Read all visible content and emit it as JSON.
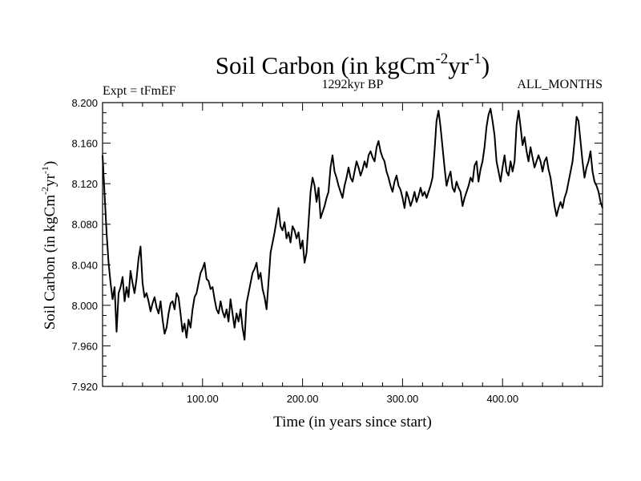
{
  "chart_data": {
    "type": "line",
    "title": {
      "main": "Soil Carbon (in kgCm",
      "sup1": "-2",
      "mid": "yr",
      "sup2": "-1",
      "end": ")"
    },
    "subtitle_left": "Expt = tFmEF",
    "subtitle_center": "1292kyr BP",
    "subtitle_right": "ALL_MONTHS",
    "xlabel": "Time (in years since start)",
    "ylabel": {
      "main": "Soil Carbon (in kgCm",
      "sup1": "-2",
      "mid": "yr",
      "sup2": "-1",
      "end": ")"
    },
    "xlim": [
      0,
      500
    ],
    "ylim": [
      7.92,
      8.2
    ],
    "x_ticks": [
      100,
      200,
      300,
      400
    ],
    "x_tick_labels": [
      "100.00",
      "200.00",
      "300.00",
      "400.00"
    ],
    "y_ticks": [
      7.92,
      7.96,
      8.0,
      8.04,
      8.08,
      8.12,
      8.16,
      8.2
    ],
    "y_tick_labels": [
      "7.920",
      "7.960",
      "8.000",
      "8.040",
      "8.080",
      "8.120",
      "8.160",
      "8.200"
    ],
    "series": [
      {
        "name": "Soil Carbon",
        "x": [
          0,
          2,
          4,
          6,
          8,
          10,
          12,
          14,
          16,
          18,
          20,
          22,
          24,
          26,
          28,
          30,
          32,
          34,
          36,
          38,
          40,
          42,
          44,
          46,
          48,
          50,
          52,
          54,
          56,
          58,
          60,
          62,
          64,
          66,
          68,
          70,
          72,
          74,
          76,
          78,
          80,
          82,
          84,
          86,
          88,
          90,
          92,
          94,
          96,
          98,
          100,
          102,
          104,
          106,
          108,
          110,
          112,
          114,
          116,
          118,
          120,
          122,
          124,
          126,
          128,
          130,
          132,
          134,
          136,
          138,
          140,
          142,
          144,
          146,
          148,
          150,
          152,
          154,
          156,
          158,
          160,
          162,
          164,
          166,
          168,
          170,
          172,
          174,
          176,
          178,
          180,
          182,
          184,
          186,
          188,
          190,
          192,
          194,
          196,
          198,
          200,
          202,
          204,
          206,
          208,
          210,
          212,
          214,
          216,
          218,
          220,
          222,
          224,
          226,
          228,
          230,
          232,
          234,
          236,
          238,
          240,
          242,
          244,
          246,
          248,
          250,
          252,
          254,
          256,
          258,
          260,
          262,
          264,
          266,
          268,
          270,
          272,
          274,
          276,
          278,
          280,
          282,
          284,
          286,
          288,
          290,
          292,
          294,
          296,
          298,
          300,
          302,
          304,
          306,
          308,
          310,
          312,
          314,
          316,
          318,
          320,
          322,
          324,
          326,
          328,
          330,
          332,
          334,
          336,
          338,
          340,
          342,
          344,
          346,
          348,
          350,
          352,
          354,
          356,
          358,
          360,
          362,
          364,
          366,
          368,
          370,
          372,
          374,
          376,
          378,
          380,
          382,
          384,
          386,
          388,
          390,
          392,
          394,
          396,
          398,
          400,
          402,
          404,
          406,
          408,
          410,
          412,
          414,
          416,
          418,
          420,
          422,
          424,
          426,
          428,
          430,
          432,
          434,
          436,
          438,
          440,
          442,
          444,
          446,
          448,
          450,
          452,
          454,
          456,
          458,
          460,
          462,
          464,
          466,
          468,
          470,
          472,
          474,
          476,
          478,
          480,
          482,
          484,
          486,
          488,
          490,
          492,
          494,
          496,
          498,
          500
        ],
        "values": [
          8.148,
          8.11,
          8.072,
          8.042,
          8.022,
          8.006,
          8.018,
          7.974,
          8.012,
          8.018,
          8.028,
          8.004,
          8.018,
          8.008,
          8.034,
          8.022,
          8.012,
          8.026,
          8.046,
          8.058,
          8.022,
          8.008,
          8.012,
          8.004,
          7.994,
          8.002,
          8.008,
          7.998,
          7.992,
          8.004,
          7.986,
          7.972,
          7.978,
          7.992,
          8.002,
          8.004,
          7.996,
          8.012,
          8.008,
          7.992,
          7.974,
          7.982,
          7.968,
          7.986,
          7.978,
          7.996,
          8.008,
          8.012,
          8.022,
          8.032,
          8.036,
          8.042,
          8.026,
          8.024,
          8.016,
          8.018,
          8.006,
          7.996,
          7.992,
          8.004,
          7.994,
          7.988,
          7.996,
          7.984,
          8.006,
          7.992,
          7.978,
          7.992,
          7.984,
          7.996,
          7.978,
          7.966,
          8.002,
          8.012,
          8.022,
          8.032,
          8.036,
          8.042,
          8.026,
          8.032,
          8.016,
          8.008,
          7.996,
          8.024,
          8.052,
          8.062,
          8.072,
          8.084,
          8.096,
          8.078,
          8.074,
          8.082,
          8.066,
          8.072,
          8.062,
          8.078,
          8.074,
          8.066,
          8.072,
          8.056,
          8.064,
          8.042,
          8.052,
          8.082,
          8.112,
          8.126,
          8.118,
          8.102,
          8.116,
          8.086,
          8.092,
          8.098,
          8.106,
          8.112,
          8.136,
          8.148,
          8.132,
          8.126,
          8.118,
          8.112,
          8.106,
          8.118,
          8.126,
          8.136,
          8.126,
          8.122,
          8.132,
          8.142,
          8.136,
          8.128,
          8.134,
          8.142,
          8.136,
          8.148,
          8.152,
          8.146,
          8.142,
          8.156,
          8.162,
          8.152,
          8.146,
          8.142,
          8.132,
          8.126,
          8.118,
          8.112,
          8.122,
          8.128,
          8.118,
          8.114,
          8.106,
          8.096,
          8.112,
          8.106,
          8.098,
          8.104,
          8.112,
          8.102,
          8.108,
          8.116,
          8.108,
          8.112,
          8.106,
          8.112,
          8.118,
          8.126,
          8.152,
          8.182,
          8.192,
          8.176,
          8.156,
          8.136,
          8.118,
          8.126,
          8.132,
          8.116,
          8.112,
          8.122,
          8.116,
          8.112,
          8.098,
          8.106,
          8.112,
          8.118,
          8.126,
          8.122,
          8.138,
          8.142,
          8.122,
          8.134,
          8.142,
          8.156,
          8.176,
          8.188,
          8.194,
          8.182,
          8.168,
          8.142,
          8.132,
          8.122,
          8.136,
          8.148,
          8.132,
          8.128,
          8.142,
          8.132,
          8.142,
          8.178,
          8.192,
          8.176,
          8.158,
          8.166,
          8.152,
          8.142,
          8.156,
          8.146,
          8.136,
          8.142,
          8.148,
          8.142,
          8.132,
          8.142,
          8.146,
          8.134,
          8.126,
          8.112,
          8.098,
          8.088,
          8.096,
          8.102,
          8.096,
          8.106,
          8.112,
          8.122,
          8.132,
          8.142,
          8.162,
          8.186,
          8.182,
          8.162,
          8.142,
          8.126,
          8.136,
          8.142,
          8.152,
          8.132,
          8.122,
          8.118,
          8.112,
          8.102,
          8.096
        ]
      }
    ]
  }
}
